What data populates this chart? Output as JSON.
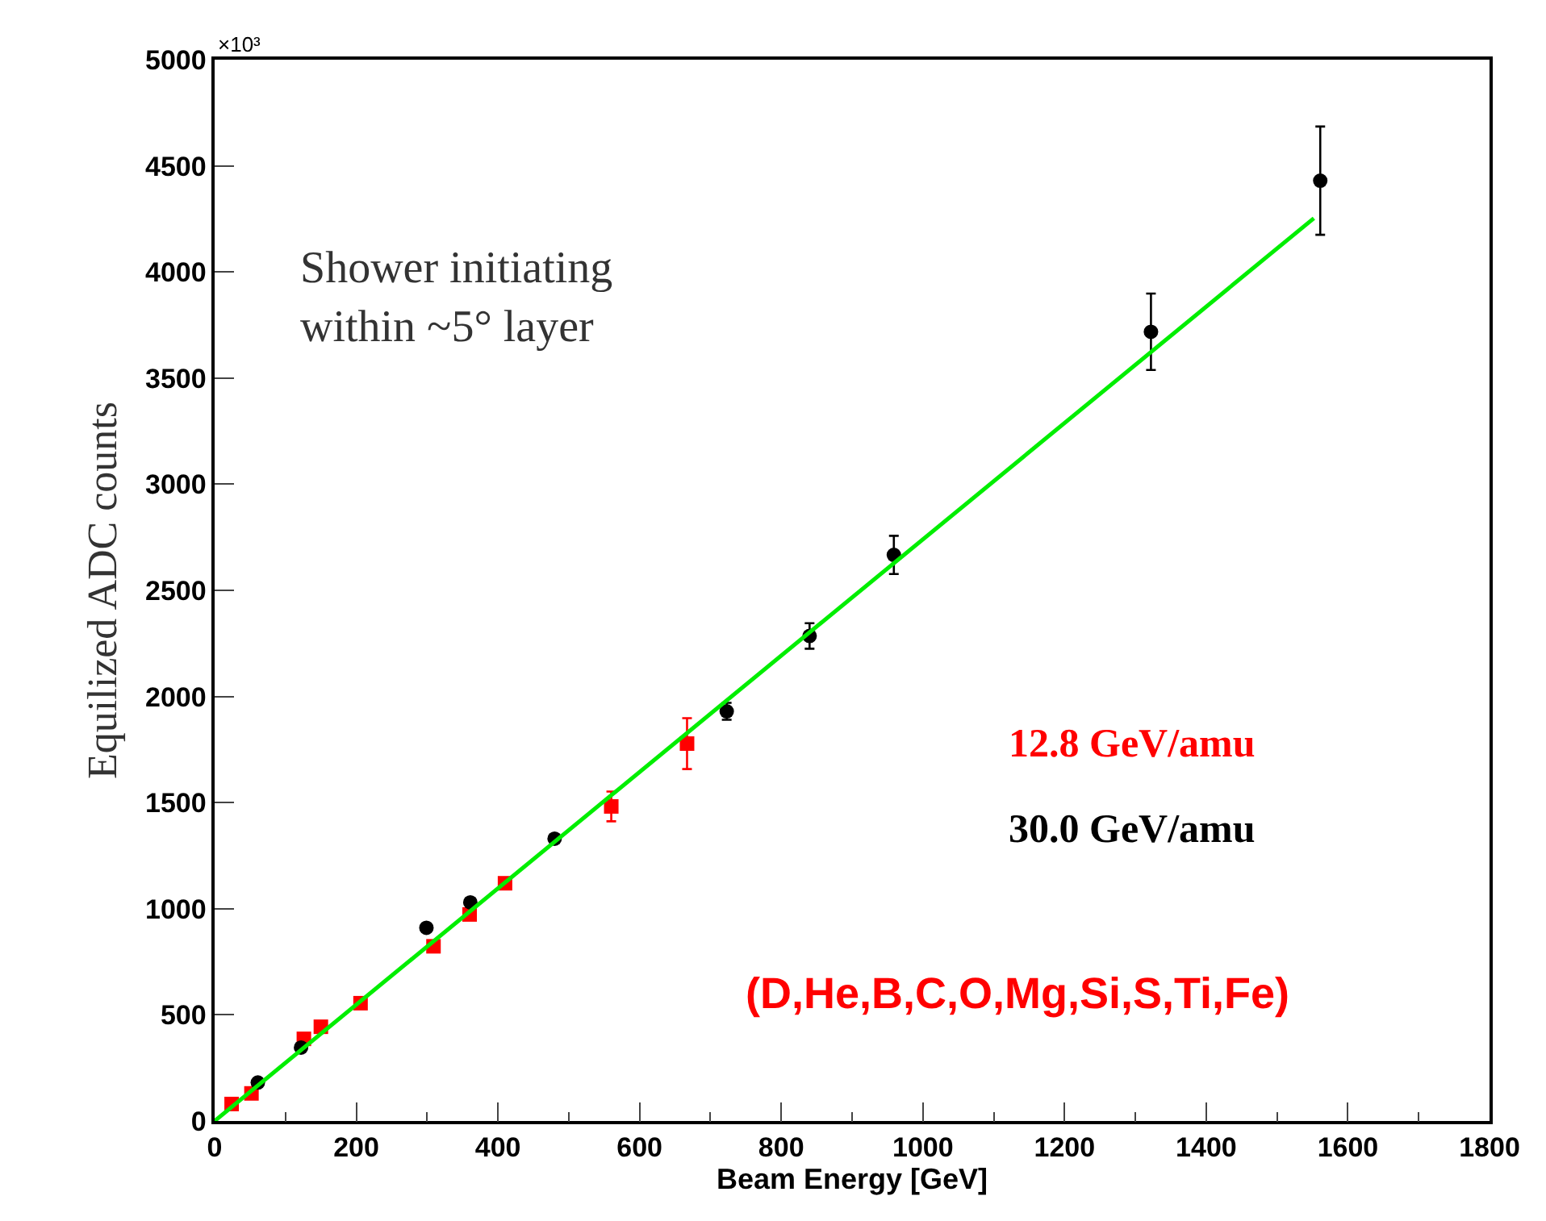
{
  "chart_data": {
    "type": "scatter",
    "xlabel": "Beam Energy [GeV]",
    "ylabel": "Equilized ADC counts",
    "xlim": [
      0,
      1800
    ],
    "xticks": [
      0,
      200,
      400,
      600,
      800,
      1000,
      1200,
      1400,
      1600,
      1800
    ],
    "ylim": [
      0,
      5000
    ],
    "yticks": [
      0,
      500,
      1000,
      1500,
      2000,
      2500,
      3000,
      3500,
      4000,
      4500,
      5000
    ],
    "legend": false,
    "annotations": [
      "×10³",
      "Shower initiating\nwithin ~5° layer",
      "(D,He,B,C,O,Mg,Si,S,Ti,Fe)"
    ],
    "series": [
      {
        "name": "12.8 GeV/amu",
        "marker": "square",
        "color": "#ff0000",
        "x": [
          24,
          52,
          126,
          150,
          206,
          309,
          360,
          410,
          560,
          667
        ],
        "values": [
          80,
          130,
          387,
          444,
          555,
          823,
          973,
          1120,
          1482,
          1778
        ],
        "errors": [
          null,
          null,
          null,
          null,
          null,
          null,
          null,
          null,
          70,
          120
        ]
      },
      {
        "name": "30.0 GeV/amu",
        "marker": "circle",
        "color": "#000000",
        "x": [
          61,
          122,
          299,
          361,
          480,
          723,
          840,
          959,
          1322,
          1561
        ],
        "values": [
          181,
          346,
          910,
          1030,
          1330,
          1930,
          2285,
          2667,
          3718,
          4430
        ],
        "errors": [
          null,
          null,
          null,
          null,
          null,
          40,
          60,
          90,
          180,
          255
        ]
      },
      {
        "type": "line",
        "color": "#00ee00",
        "line_style": "solid",
        "x": [
          0,
          1552
        ],
        "values": [
          0,
          4253
        ]
      }
    ]
  }
}
